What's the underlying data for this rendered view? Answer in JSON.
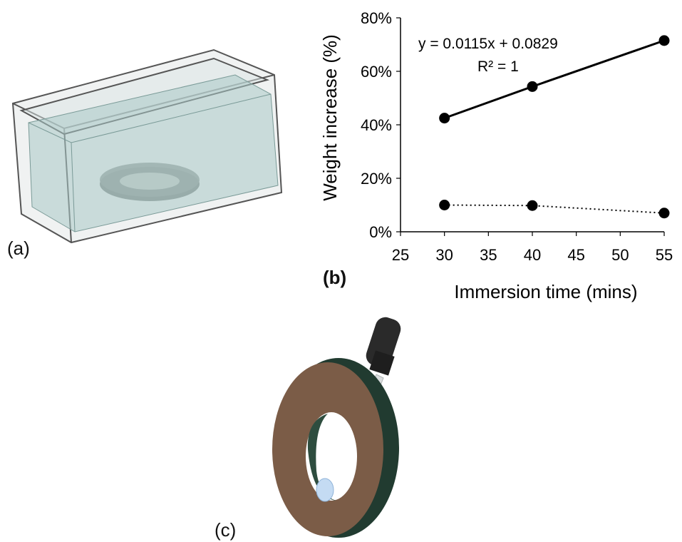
{
  "panels": {
    "a": "(a)",
    "b": "(b)",
    "c": "(c)"
  },
  "chart_data": {
    "type": "line",
    "xlabel": "Immersion time (mins)",
    "ylabel": "Weight increase (%)",
    "xlim": [
      25,
      55
    ],
    "ylim": [
      0,
      0.8
    ],
    "xticks": [
      "25",
      "30",
      "35",
      "40",
      "45",
      "50",
      "55"
    ],
    "yticks": [
      "0%",
      "20%",
      "40%",
      "60%",
      "80%"
    ],
    "grid": false,
    "legend": "none",
    "series": [
      {
        "style": "solid",
        "x": [
          30,
          40,
          55
        ],
        "y": [
          0.425,
          0.543,
          0.715
        ]
      },
      {
        "style": "dotted",
        "x": [
          30,
          40,
          55
        ],
        "y": [
          0.1,
          0.098,
          0.07
        ]
      }
    ],
    "annotations": {
      "equation": "y = 0.0115x + 0.0829",
      "r_squared": "R² = 1"
    }
  },
  "colors": {
    "line": "#000000",
    "water": "#b7d3d0",
    "ring_face": "#7b5c47",
    "ring_edge": "#2c4a3c"
  }
}
